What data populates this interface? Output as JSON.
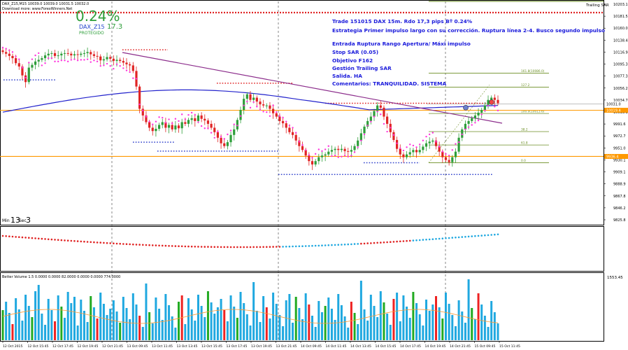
{
  "header": {
    "symbol_line": "DAX_Z15,M15  10039.0 10039.0 10031.5 10032.0",
    "download_line": "Download more: www.ForexWinners.Net",
    "indicator_name": "Trailing SAR"
  },
  "widget": {
    "percent": "0.24%",
    "symbol": "DAX_Z15",
    "pips": "17.3",
    "status": "PROTEGIDO"
  },
  "notes": [
    "Trade 151015 DAX 15m. Rdo 17,3 pips Bº 0.24%",
    "Estrategia Primer impulso largo con su corrección. Ruptura línea 2-4.  Busco segundo impulso",
    "",
    "Entrada Ruptura Rango Apertura/ Máxi impulso",
    "Stop SAR (0.05)",
    "Objetivo F162",
    "Gestión Trailing SAR",
    "Salida. HA",
    "Comentarios: TRANQUILIDAD. SISTEMA"
  ],
  "timer": {
    "label_min": "Min",
    "min": "13",
    "label_sec": "Sec",
    "sec": "3"
  },
  "volume_title": "Better Volume 1.5 0.0000 0.0000 82.0000 0.0000 0.0000 774.0000",
  "colors": {
    "bull": "#2e9e3a",
    "bear": "#e02424",
    "sar": "#ff33dd",
    "ma": "#2222cc",
    "trend": "#8b2c8b",
    "orange": "#ff9900",
    "stopline": "#e02424",
    "dotblue": "#3344cc",
    "fibo": "#6b8e23",
    "vol_blue": "#1fa8e0",
    "vol_green": "#22aa22",
    "vol_red": "#ee2222",
    "vol_ma": "#ff9933"
  },
  "chart_data": {
    "type": "candlestick",
    "price_axis_ticks": [
      "10203.1",
      "10181.5",
      "10160.0",
      "10138.4",
      "10116.9",
      "10095.3",
      "10077.3",
      "10056.2",
      "10034.7",
      "10013.1",
      "9991.6",
      "9972.7",
      "9951.0",
      "9930.1",
      "9909.1",
      "9888.9",
      "9867.8",
      "9846.2",
      "9825.8"
    ],
    "volume_axis_label": "1553.45",
    "price_labels": {
      "current": "10031.0",
      "orange_upper": "10019.4",
      "orange_lower": "9936.4"
    },
    "fibo_levels": [
      {
        "label": "161.8(10086.0)",
        "price": 10086.0
      },
      {
        "label": "127.2",
        "price": 10061.0
      },
      {
        "label": "100.0(10013.6)",
        "price": 10013.6
      },
      {
        "label": "38.2",
        "price": 9981.0
      },
      {
        "label": "61.8",
        "price": 9957.0
      },
      {
        "label": "0.0",
        "price": 9925.0
      }
    ],
    "time_labels": [
      "12 Oct 2015",
      "12 Oct 15:45",
      "12 Oct 17:45",
      "12 Oct 19:45",
      "12 Oct 21:45",
      "13 Oct 09:45",
      "13 Oct 11:45",
      "13 Oct 13:45",
      "13 Oct 15:45",
      "13 Oct 17:45",
      "13 Oct 19:45",
      "13 Oct 21:45",
      "14 Oct 09:45",
      "14 Oct 11:45",
      "14 Oct 13:45",
      "14 Oct 15:45",
      "14 Oct 17:45",
      "14 Oct 19:45",
      "14 Oct 21:45",
      "15 Oct 09:45",
      "15 Oct 11:45"
    ],
    "price_range": [
      9815,
      10215
    ],
    "candles_close": [
      10124,
      10121,
      10117,
      10113,
      10104,
      10098,
      10082,
      10070,
      10096,
      10101,
      10107,
      10110,
      10113,
      10118,
      10121,
      10122,
      10117,
      10118,
      10121,
      10122,
      10121,
      10118,
      10120,
      10119,
      10121,
      10122,
      10124,
      10120,
      10117,
      10116,
      10109,
      10111,
      10115,
      10112,
      10108,
      10110,
      10108,
      10105,
      10102,
      10100,
      10090,
      10062,
      10022,
      10010,
      9998,
      9988,
      9982,
      9986,
      9993,
      9998,
      9988,
      9993,
      9985,
      9992,
      9987,
      9998,
      9995,
      10002,
      10005,
      10000,
      10010,
      10004,
      10001,
      9995,
      9988,
      9980,
      9970,
      9960,
      9955,
      9962,
      9975,
      9985,
      10002,
      10020,
      10040,
      10048,
      10038,
      10042,
      10035,
      10030,
      10028,
      10028,
      10022,
      10014,
      10008,
      10000,
      9996,
      9988,
      9980,
      9975,
      9965,
      9955,
      9948,
      9938,
      9928,
      9922,
      9928,
      9935,
      9938,
      9940,
      9945,
      9948,
      9950,
      9948,
      9950,
      9946,
      9945,
      9948,
      9955,
      9965,
      9978,
      9990,
      10000,
      10008,
      10018,
      10028,
      10024,
      10008,
      9995,
      9980,
      9966,
      9950,
      9940,
      9935,
      9940,
      9944,
      9948,
      9944,
      9948,
      9954,
      9960,
      9963,
      9965,
      9955,
      9945,
      9935,
      9930,
      9926,
      9935,
      9945,
      9970,
      9985,
      9995,
      10000,
      10005,
      10010,
      10015,
      10020,
      10028,
      10038,
      10042,
      10038,
      10032
    ],
    "sar_note": "parabolic SAR dots track above price in downtrends and below in uptrends",
    "volume": "bars coloured blue/green/red with orange moving average"
  }
}
